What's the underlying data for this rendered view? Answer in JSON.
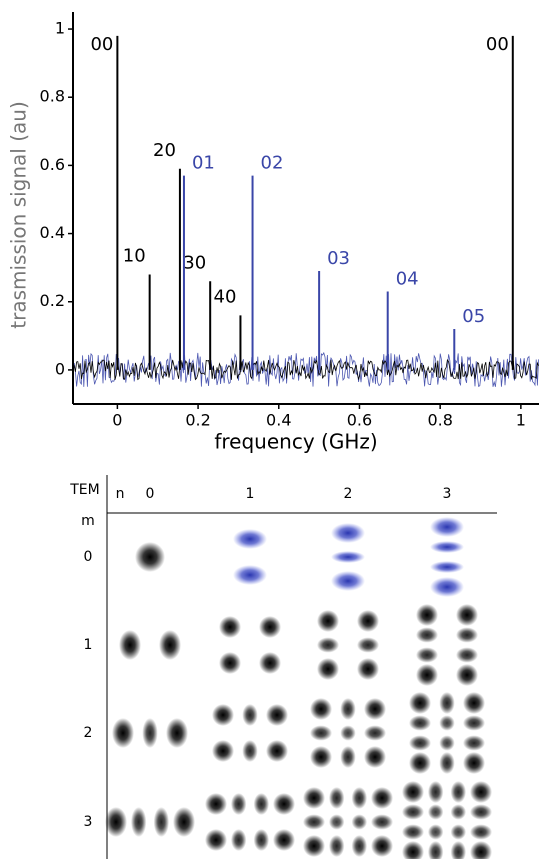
{
  "chart_data": {
    "type": "stem",
    "xlabel": "frequency (GHz)",
    "ylabel": "trasmission signal (au)",
    "xlim": [
      -0.11,
      1.04
    ],
    "ylim": [
      -0.1,
      1.05
    ],
    "xticks": [
      0,
      0.2,
      0.4,
      0.6,
      0.8,
      1
    ],
    "yticks": [
      0,
      0.2,
      0.4,
      0.6,
      0.8,
      1
    ],
    "series": [
      {
        "color": "#000000",
        "x": [
          0,
          0.08,
          0.155,
          0.23,
          0.305,
          0.98
        ],
        "values": [
          0.98,
          0.28,
          0.59,
          0.26,
          0.16,
          0.98
        ],
        "labels": [
          "00",
          "10",
          "20",
          "30",
          "40",
          "00"
        ]
      },
      {
        "color": "#3a46a8",
        "x": [
          0.165,
          0.335,
          0.5,
          0.67,
          0.835
        ],
        "values": [
          0.57,
          0.57,
          0.29,
          0.23,
          0.12
        ],
        "labels": [
          "01",
          "02",
          "03",
          "04",
          "05"
        ]
      }
    ]
  },
  "mode_table": {
    "corner": "TEM",
    "n_label": "n",
    "m_label": "m",
    "columns": [
      "0",
      "1",
      "2",
      "3"
    ],
    "rows": [
      "0",
      "1",
      "2",
      "3"
    ]
  }
}
